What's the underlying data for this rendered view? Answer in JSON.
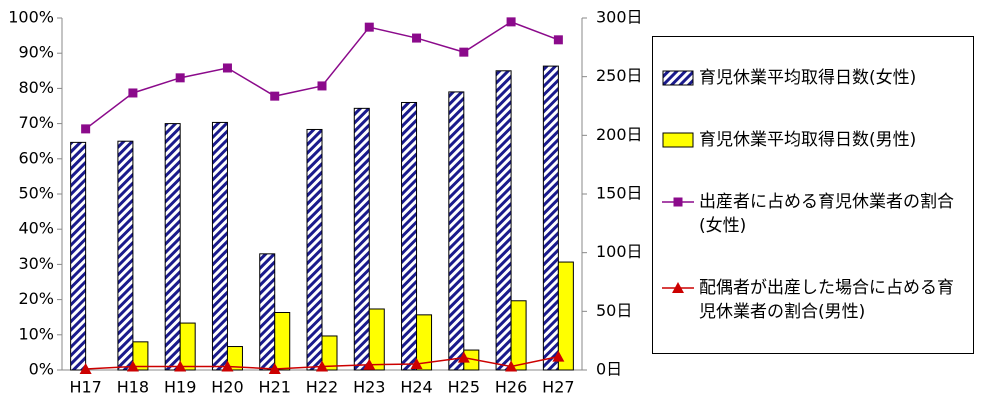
{
  "chart_data": {
    "type": "bar",
    "categories": [
      "H17",
      "H18",
      "H19",
      "H20",
      "H21",
      "H22",
      "H23",
      "H24",
      "H25",
      "H26",
      "H27"
    ],
    "series": [
      {
        "name": "育児休業平均取得日数(女性)",
        "type": "bar",
        "axis": "y2",
        "color": "#1a1a8c",
        "pattern": "hatch",
        "values": [
          194,
          195,
          210,
          211,
          99,
          205,
          223,
          228,
          237,
          255,
          259
        ]
      },
      {
        "name": "育児休業平均取得日数(男性)",
        "type": "bar",
        "axis": "y2",
        "color": "#ffff00",
        "values": [
          0,
          24,
          40,
          20,
          49,
          29,
          52,
          47,
          17,
          59,
          92
        ]
      },
      {
        "name": "出産者に占める育児休業者の割合(女性)",
        "type": "line",
        "marker": "square",
        "color": "#8b0a8b",
        "values": [
          68.5,
          78.7,
          83.0,
          85.8,
          77.8,
          80.7,
          97.4,
          94.3,
          90.3,
          98.9,
          93.8
        ]
      },
      {
        "name": "配偶者が出産した場合に占める育児休業者の割合(男性)",
        "type": "line",
        "marker": "triangle",
        "color": "#cc0000",
        "values": [
          0.3,
          1.0,
          1.0,
          1.0,
          0.3,
          1.0,
          1.5,
          1.7,
          3.5,
          1.0,
          3.8
        ]
      }
    ],
    "ylim": [
      0,
      100
    ],
    "yticks": [
      {
        "value": 0,
        "label": "0%"
      },
      {
        "value": 10,
        "label": "10%"
      },
      {
        "value": 20,
        "label": "20%"
      },
      {
        "value": 30,
        "label": "30%"
      },
      {
        "value": 40,
        "label": "40%"
      },
      {
        "value": 50,
        "label": "50%"
      },
      {
        "value": 60,
        "label": "60%"
      },
      {
        "value": 70,
        "label": "70%"
      },
      {
        "value": 80,
        "label": "80%"
      },
      {
        "value": 90,
        "label": "90%"
      },
      {
        "value": 100,
        "label": "100%"
      }
    ],
    "y2lim": [
      0,
      300
    ],
    "y2ticks": [
      {
        "value": 0,
        "label": "0日"
      },
      {
        "value": 50,
        "label": "50日"
      },
      {
        "value": 100,
        "label": "100日"
      },
      {
        "value": 150,
        "label": "150日"
      },
      {
        "value": 200,
        "label": "200日"
      },
      {
        "value": 250,
        "label": "250日"
      },
      {
        "value": 300,
        "label": "300日"
      }
    ],
    "grid": false,
    "legend": "right"
  }
}
